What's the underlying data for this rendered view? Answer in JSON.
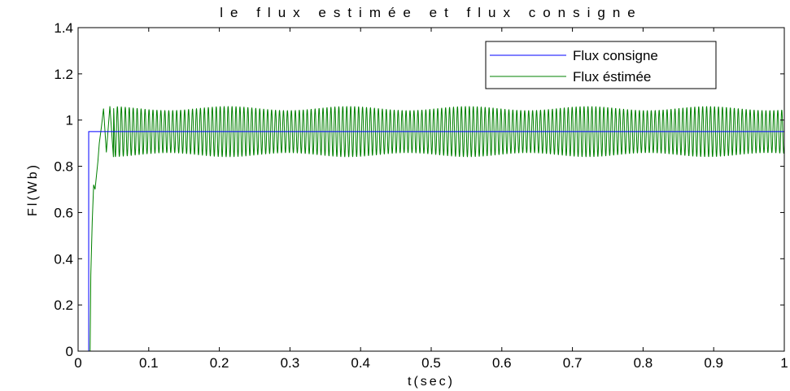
{
  "chart_data": {
    "type": "line",
    "title": "le flux estimée et flux consigne",
    "xlabel": "t(sec)",
    "ylabel": "Fl(Wb)",
    "xlim": [
      0,
      1
    ],
    "ylim": [
      0,
      1.4
    ],
    "xticks": [
      0,
      0.1,
      0.2,
      0.3,
      0.4,
      0.5,
      0.6,
      0.7,
      0.8,
      0.9,
      1
    ],
    "yticks": [
      0,
      0.2,
      0.4,
      0.6,
      0.8,
      1,
      1.2,
      1.4
    ],
    "xtick_labels": [
      "0",
      "0.1",
      "0.2",
      "0.3",
      "0.4",
      "0.5",
      "0.6",
      "0.7",
      "0.8",
      "0.9",
      "1"
    ],
    "ytick_labels": [
      "0",
      "0.2",
      "0.4",
      "0.6",
      "0.8",
      "1",
      "1.2",
      "1.4"
    ],
    "grid": false,
    "legend_position": "top-right",
    "series": [
      {
        "name": "Flux consigne",
        "color": "#0000ff",
        "x": [
          0,
          0.015,
          0.015,
          1
        ],
        "y": [
          0,
          0,
          0.95,
          0.95
        ]
      },
      {
        "name": "Flux éstimée",
        "color": "#008000",
        "x": [
          0,
          0.017,
          0.018,
          0.02,
          0.022,
          0.024,
          0.026,
          0.028,
          0.03,
          0.033,
          0.036,
          0.04,
          0.045,
          0.05,
          1
        ],
        "y": [
          0,
          0,
          0.33,
          0.56,
          0.72,
          0.7,
          0.76,
          0.82,
          0.9,
          0.97,
          1.05,
          0.86,
          1.06,
          0.84,
          0.95
        ],
        "oscillation": {
          "center": 0.95,
          "amplitude": 0.11,
          "period": 0.0056
        }
      }
    ]
  }
}
